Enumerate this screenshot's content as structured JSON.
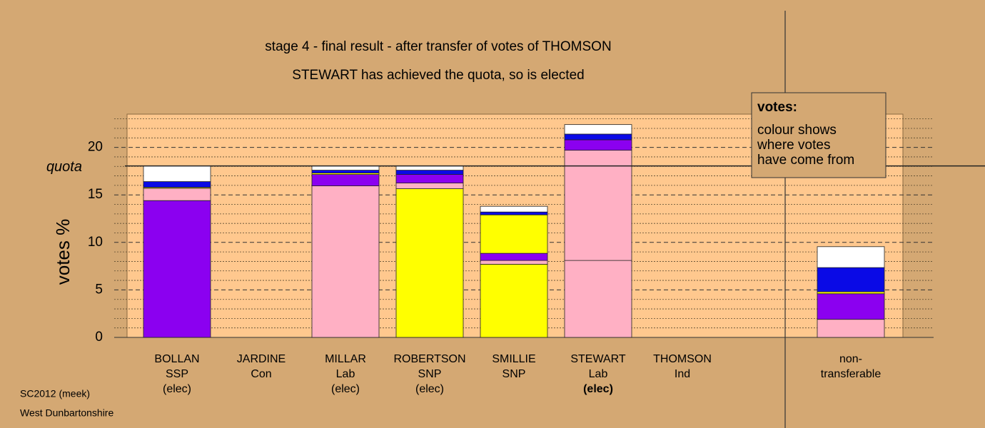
{
  "chart_data": {
    "type": "bar",
    "stacked": true,
    "title": "stage 4 - final result - after transfer of votes of THOMSON",
    "subtitle": "STEWART has achieved the quota, so is elected",
    "y_label": "votes %",
    "categories": [
      [
        "BOLLAN",
        "SSP",
        "(elec)"
      ],
      [
        "JARDINE",
        "Con"
      ],
      [
        "MILLAR",
        "Lab",
        "(elec)"
      ],
      [
        "ROBERTSON",
        "SNP",
        "(elec)"
      ],
      [
        "SMILLIE",
        "SNP"
      ],
      [
        "STEWART",
        "Lab",
        "(elec)"
      ],
      [
        "THOMSON",
        "Ind"
      ],
      [
        "non-",
        "transferable"
      ]
    ],
    "highlight_category": 5,
    "series": [
      {
        "colors": [
          "#8b00f0",
          null,
          "#ffb0c4",
          "#ffff00",
          "#ffff00",
          "#ffb0c4",
          null,
          "#ffb0c4"
        ],
        "values": [
          14.4,
          null,
          15.95,
          15.65,
          7.7,
          8.1,
          null,
          1.9
        ]
      },
      {
        "color": "#ffb0c4",
        "values": [
          1.3,
          null,
          0,
          0.6,
          0.4,
          11.6,
          null,
          0
        ]
      },
      {
        "color": "#8b00f0",
        "values": [
          0,
          null,
          1.2,
          0.9,
          0.75,
          1.1,
          null,
          2.7
        ]
      },
      {
        "color": "#ffff00",
        "values": [
          0.1,
          null,
          0.15,
          0,
          4.05,
          0,
          null,
          0.2
        ]
      },
      {
        "color": "#0a0ae6",
        "values": [
          0.6,
          null,
          0.3,
          0.45,
          0.3,
          0.6,
          null,
          2.55
        ]
      },
      {
        "color": "#ffffff",
        "values": [
          1.65,
          null,
          0.45,
          0.45,
          0.6,
          1.0,
          null,
          2.2
        ]
      }
    ],
    "ylim": [
      0,
      23.5
    ],
    "yticks": [
      0,
      5,
      10,
      15,
      20
    ],
    "minor_yticks": [
      1,
      2,
      3,
      4,
      6,
      7,
      8,
      9,
      11,
      12,
      13,
      14,
      16,
      17,
      18,
      19,
      21,
      22,
      23
    ],
    "quota": {
      "label": "quota",
      "value": 18.05
    },
    "legend_note": {
      "title": "votes:",
      "lines": [
        "colour shows",
        "where votes",
        "have come from"
      ]
    },
    "source": "SC2012 (meek)",
    "region": "West Dunbartonshire"
  }
}
